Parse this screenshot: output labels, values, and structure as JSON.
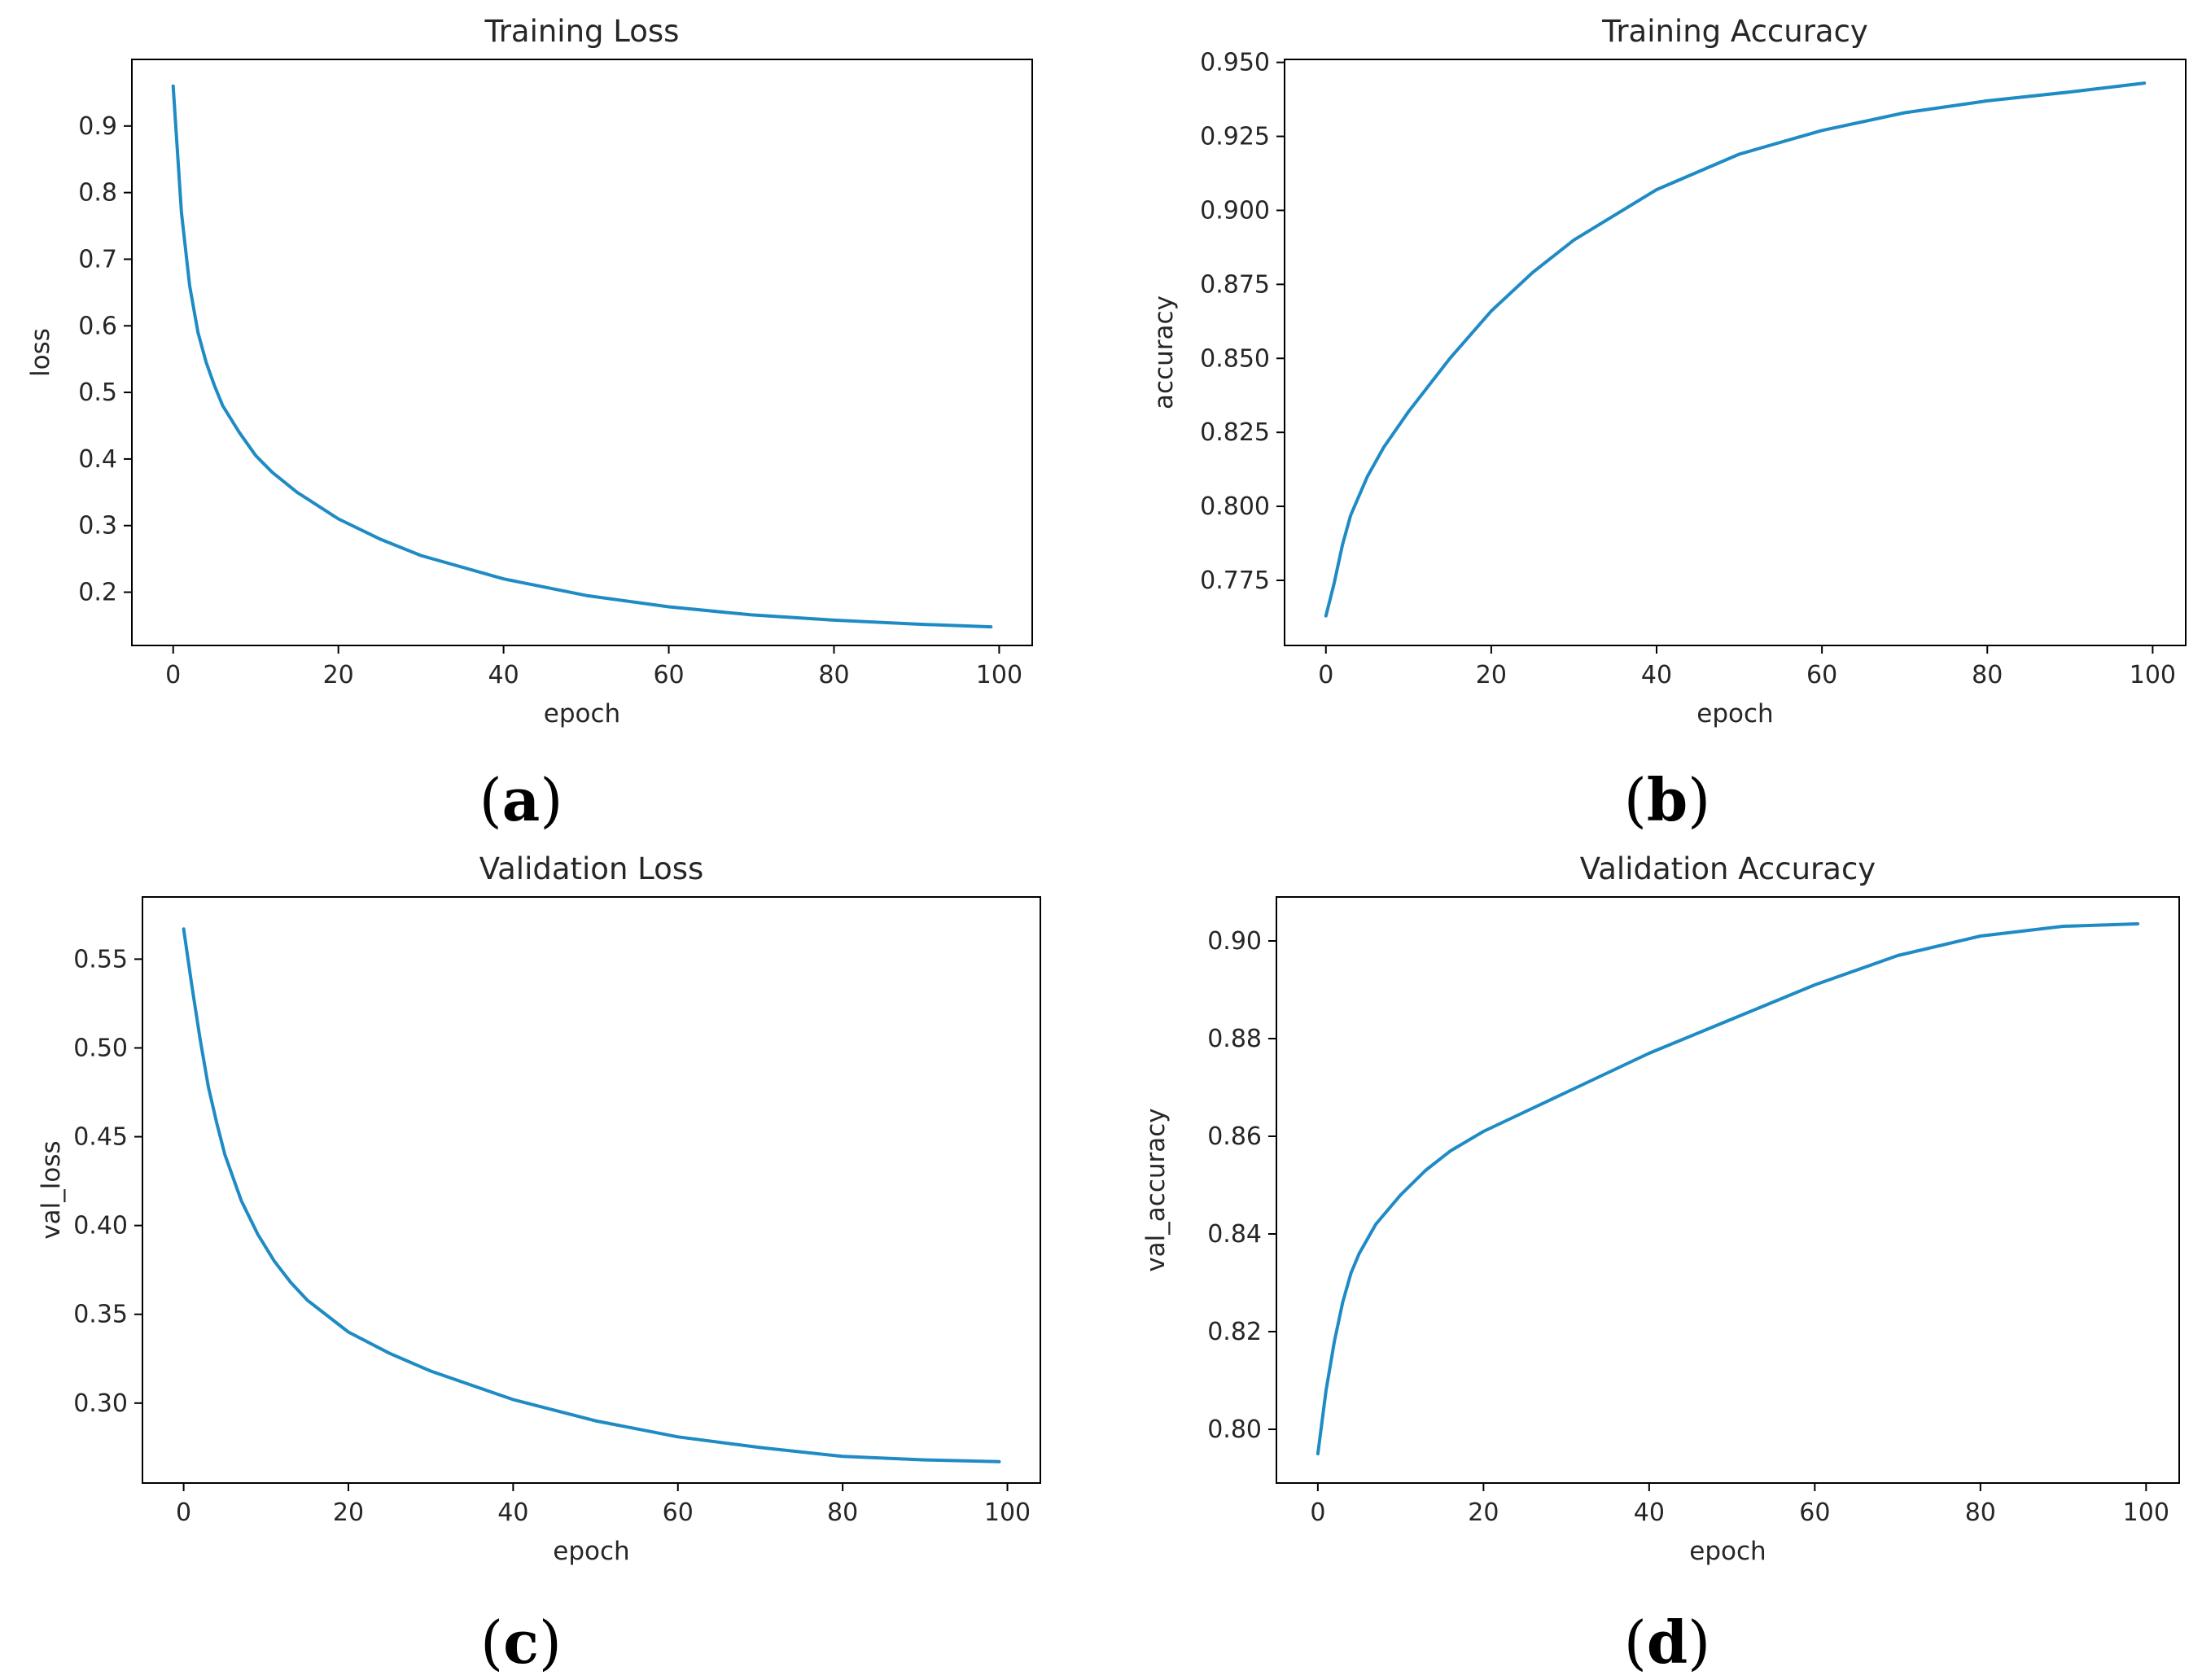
{
  "chart_data": [
    {
      "type": "line",
      "panel_label": "a",
      "title": "Training Loss",
      "xlabel": "epoch",
      "ylabel": "loss",
      "xlim": [
        -5,
        104
      ],
      "ylim": [
        0.12,
        1.0
      ],
      "xticks": [
        0,
        20,
        40,
        60,
        80,
        100
      ],
      "xtick_labels": [
        "0",
        "20",
        "40",
        "60",
        "80",
        "100"
      ],
      "yticks": [
        0.2,
        0.3,
        0.4,
        0.5,
        0.6,
        0.7,
        0.8,
        0.9
      ],
      "ytick_labels": [
        "0.2",
        "0.3",
        "0.4",
        "0.5",
        "0.6",
        "0.7",
        "0.8",
        "0.9"
      ],
      "grid": false,
      "line_color": "#1f8bc4",
      "series": [
        {
          "x": [
            0,
            1,
            2,
            3,
            4,
            5,
            6,
            8,
            10,
            12,
            15,
            20,
            25,
            30,
            40,
            50,
            60,
            70,
            80,
            90,
            99
          ],
          "y": [
            0.96,
            0.77,
            0.66,
            0.59,
            0.545,
            0.51,
            0.48,
            0.44,
            0.405,
            0.38,
            0.35,
            0.31,
            0.28,
            0.255,
            0.22,
            0.195,
            0.178,
            0.166,
            0.158,
            0.152,
            0.148
          ]
        }
      ]
    },
    {
      "type": "line",
      "panel_label": "b",
      "title": "Training Accuracy",
      "xlabel": "epoch",
      "ylabel": "accuracy",
      "xlim": [
        -5,
        104
      ],
      "ylim": [
        0.753,
        0.951
      ],
      "xticks": [
        0,
        20,
        40,
        60,
        80,
        100
      ],
      "xtick_labels": [
        "0",
        "20",
        "40",
        "60",
        "80",
        "100"
      ],
      "yticks": [
        0.775,
        0.8,
        0.825,
        0.85,
        0.875,
        0.9,
        0.925,
        0.95
      ],
      "ytick_labels": [
        "0.775",
        "0.800",
        "0.825",
        "0.850",
        "0.875",
        "0.900",
        "0.925",
        "0.950"
      ],
      "grid": false,
      "line_color": "#1f8bc4",
      "series": [
        {
          "x": [
            0,
            1,
            2,
            3,
            5,
            7,
            10,
            15,
            20,
            25,
            30,
            40,
            50,
            60,
            70,
            80,
            90,
            99
          ],
          "y": [
            0.763,
            0.774,
            0.787,
            0.797,
            0.81,
            0.82,
            0.832,
            0.85,
            0.866,
            0.879,
            0.89,
            0.907,
            0.919,
            0.927,
            0.933,
            0.937,
            0.94,
            0.943
          ]
        }
      ]
    },
    {
      "type": "line",
      "panel_label": "c",
      "title": "Validation Loss",
      "xlabel": "epoch",
      "ylabel": "val_loss",
      "xlim": [
        -5,
        104
      ],
      "ylim": [
        0.255,
        0.585
      ],
      "xticks": [
        0,
        20,
        40,
        60,
        80,
        100
      ],
      "xtick_labels": [
        "0",
        "20",
        "40",
        "60",
        "80",
        "100"
      ],
      "yticks": [
        0.3,
        0.35,
        0.4,
        0.45,
        0.5,
        0.55
      ],
      "ytick_labels": [
        "0.30",
        "0.35",
        "0.40",
        "0.45",
        "0.50",
        "0.55"
      ],
      "grid": false,
      "line_color": "#1f8bc4",
      "series": [
        {
          "x": [
            0,
            1,
            2,
            3,
            4,
            5,
            7,
            9,
            11,
            13,
            15,
            20,
            25,
            30,
            40,
            50,
            60,
            70,
            80,
            90,
            99
          ],
          "y": [
            0.567,
            0.535,
            0.505,
            0.478,
            0.458,
            0.44,
            0.414,
            0.395,
            0.38,
            0.368,
            0.358,
            0.34,
            0.328,
            0.318,
            0.302,
            0.29,
            0.281,
            0.275,
            0.27,
            0.268,
            0.267
          ]
        }
      ]
    },
    {
      "type": "line",
      "panel_label": "d",
      "title": "Validation Accuracy",
      "xlabel": "epoch",
      "ylabel": "val_accuracy",
      "xlim": [
        -5,
        104
      ],
      "ylim": [
        0.789,
        0.909
      ],
      "xticks": [
        0,
        20,
        40,
        60,
        80,
        100
      ],
      "xtick_labels": [
        "0",
        "20",
        "40",
        "60",
        "80",
        "100"
      ],
      "yticks": [
        0.8,
        0.82,
        0.84,
        0.86,
        0.88,
        0.9
      ],
      "ytick_labels": [
        "0.80",
        "0.82",
        "0.84",
        "0.86",
        "0.88",
        "0.90"
      ],
      "grid": false,
      "line_color": "#1f8bc4",
      "series": [
        {
          "x": [
            0,
            1,
            2,
            3,
            4,
            5,
            7,
            10,
            13,
            16,
            20,
            25,
            30,
            40,
            50,
            60,
            70,
            80,
            90,
            99
          ],
          "y": [
            0.795,
            0.808,
            0.818,
            0.826,
            0.832,
            0.836,
            0.842,
            0.848,
            0.853,
            0.857,
            0.861,
            0.865,
            0.869,
            0.877,
            0.884,
            0.891,
            0.897,
            0.901,
            0.903,
            0.9035
          ]
        }
      ]
    }
  ]
}
